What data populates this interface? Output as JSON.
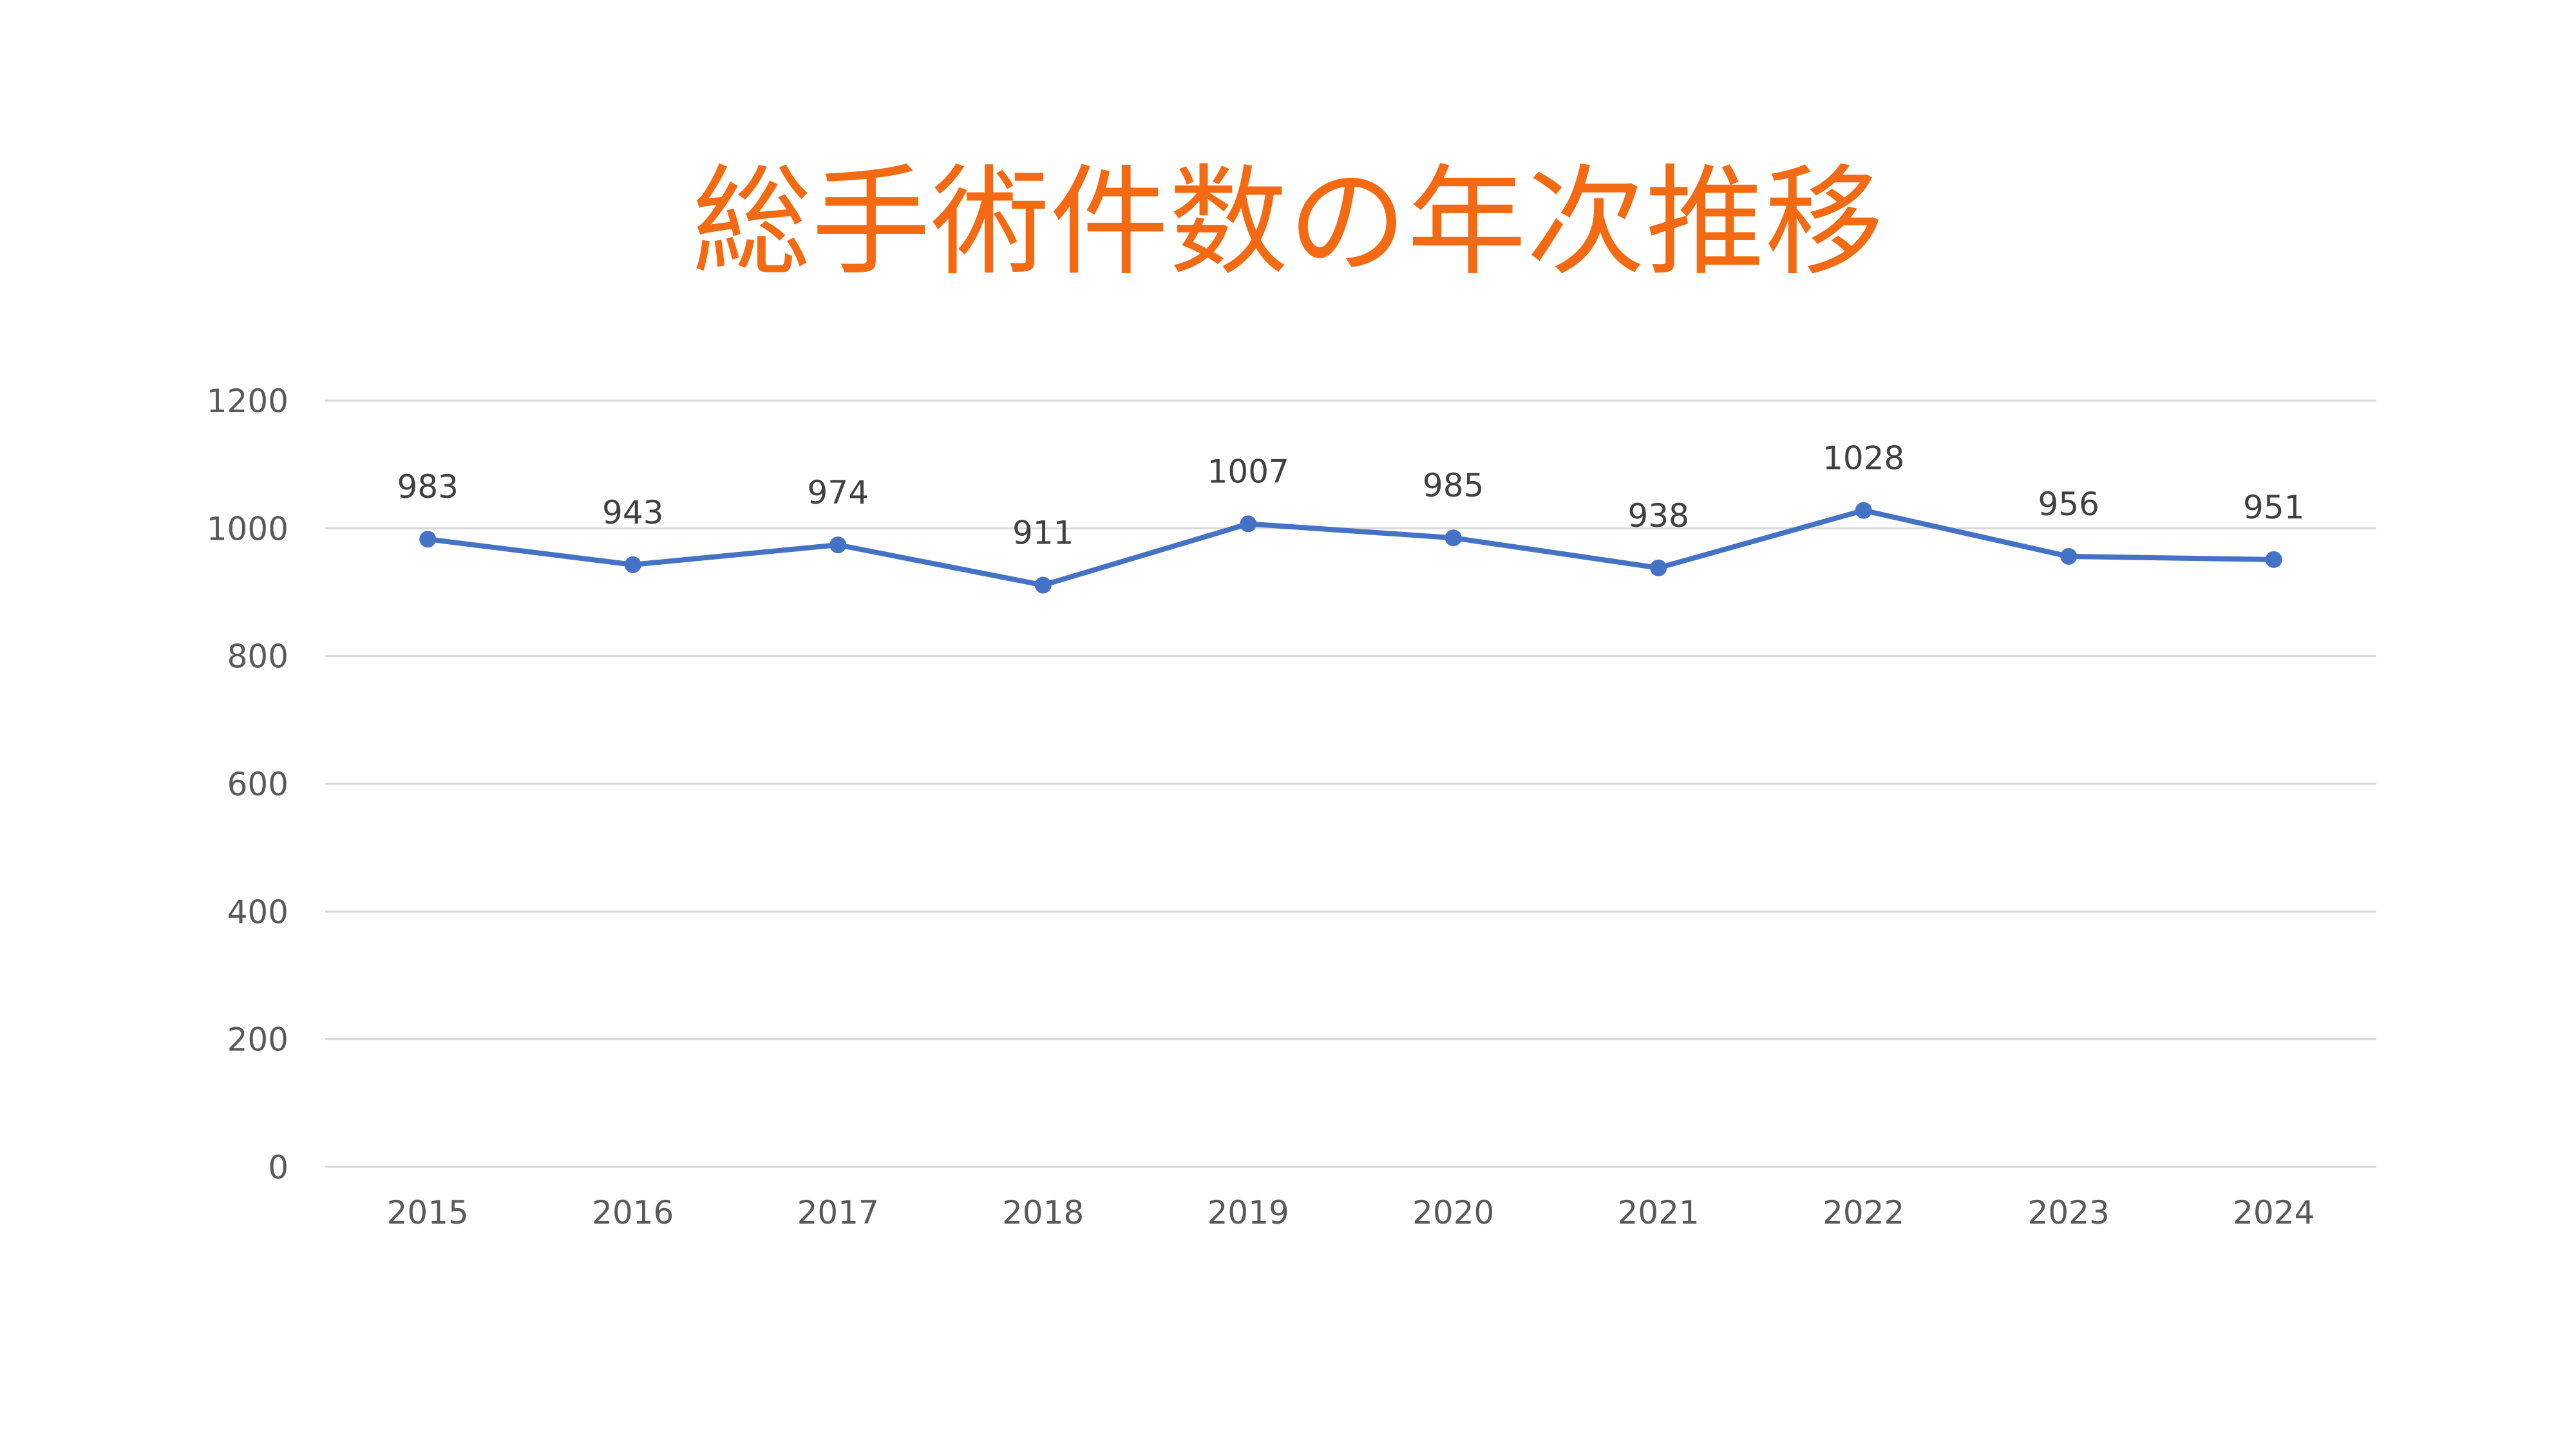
{
  "title": "総手術件数の年次推移",
  "colors": {
    "title": "#F36A12",
    "series": "#4472C4",
    "grid": "#D9D9D9",
    "axis_text": "#595959",
    "data_label": "#404040"
  },
  "chart_data": {
    "type": "line",
    "title": "総手術件数の年次推移",
    "xlabel": "",
    "ylabel": "",
    "categories": [
      "2015",
      "2016",
      "2017",
      "2018",
      "2019",
      "2020",
      "2021",
      "2022",
      "2023",
      "2024"
    ],
    "series": [
      {
        "values": [
          983,
          943,
          974,
          911,
          1007,
          985,
          938,
          1028,
          956,
          951
        ]
      }
    ],
    "ylim": [
      0,
      1200
    ],
    "yticks": [
      0,
      200,
      400,
      600,
      800,
      1000,
      1200
    ],
    "grid": true,
    "legend": false,
    "markers": true,
    "data_labels": true
  }
}
